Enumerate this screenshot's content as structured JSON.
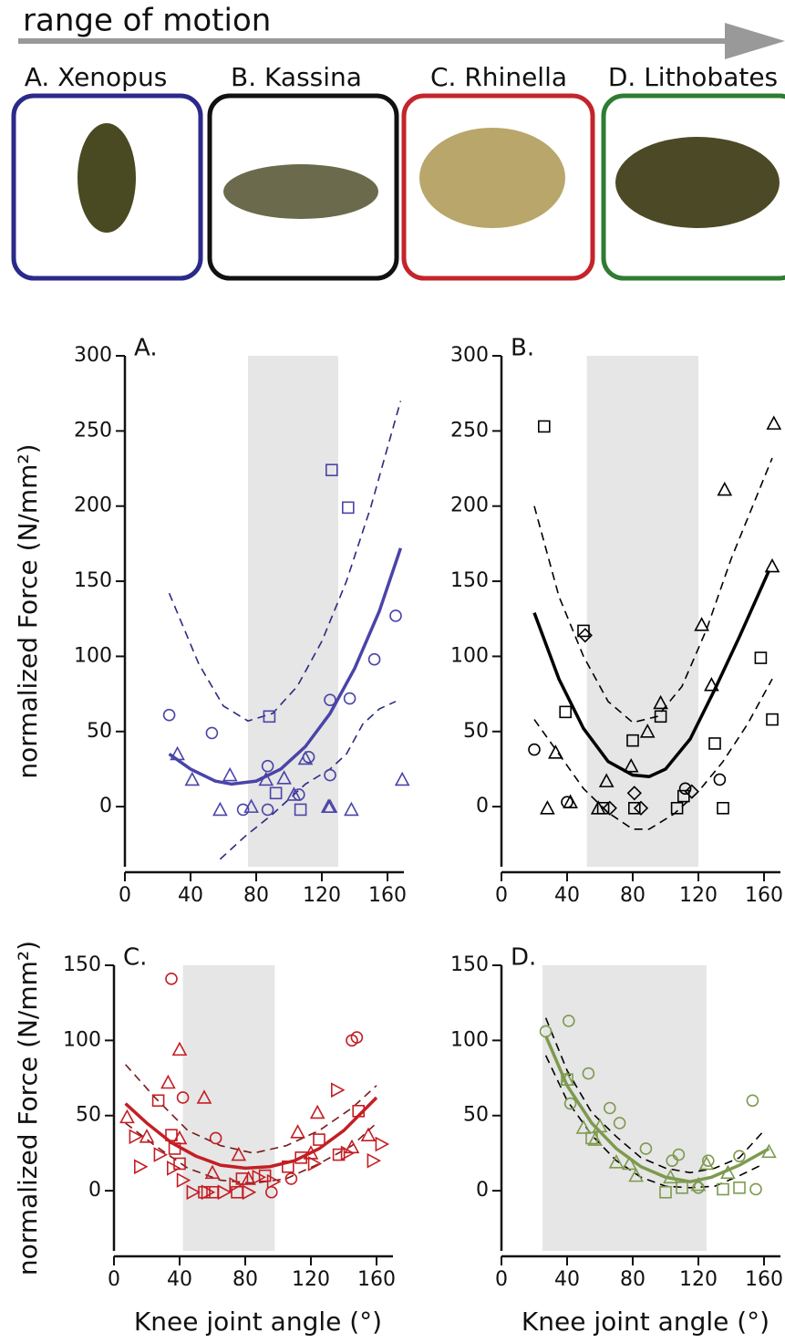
{
  "header": {
    "title": "range of motion",
    "species": [
      "A. Xenopus",
      "B. Kassina",
      "C. Rhinella",
      "D. Lithobates"
    ]
  },
  "chart_data": [
    {
      "type": "scatter",
      "panel_label": "A.",
      "ylabel": "normalized Force (N/mm²)",
      "xlim": [
        0,
        170
      ],
      "xticks": [
        0,
        40,
        80,
        120,
        160
      ],
      "ylim": [
        -40,
        300
      ],
      "yticks": [
        0,
        50,
        100,
        150,
        200,
        250,
        300
      ],
      "shade": [
        75,
        130
      ],
      "color": "#4a44a8",
      "ci_color": "#2b2a80",
      "series": [
        {
          "marker": "circle",
          "x": [
            27,
            53,
            72,
            87,
            87,
            106,
            112,
            125,
            125,
            137,
            152,
            165
          ],
          "values": [
            61,
            49,
            -2,
            27,
            -2,
            8,
            33,
            71,
            21,
            72,
            98,
            127
          ]
        },
        {
          "marker": "triangle",
          "x": [
            32,
            41,
            58,
            64,
            77,
            86,
            97,
            103,
            110,
            124,
            125,
            138,
            169
          ],
          "values": [
            35,
            18,
            -2,
            21,
            0,
            18,
            19,
            8,
            32,
            0,
            0,
            -2,
            18
          ]
        },
        {
          "marker": "square",
          "x": [
            88,
            92,
            107,
            126,
            136
          ],
          "values": [
            60,
            9,
            -2,
            224,
            199
          ]
        }
      ],
      "fit": {
        "x": [
          27,
          40,
          55,
          65,
          80,
          95,
          110,
          125,
          140,
          155,
          168
        ],
        "values": [
          35,
          25,
          17,
          15,
          17,
          25,
          40,
          62,
          92,
          130,
          172
        ]
      },
      "ci_upper": {
        "x": [
          27,
          45,
          60,
          75,
          90,
          105,
          120,
          135,
          150,
          168
        ],
        "values": [
          142,
          95,
          67,
          57,
          62,
          80,
          110,
          150,
          200,
          270
        ]
      },
      "ci_lower": {
        "x": [
          58,
          73,
          90,
          100,
          110,
          125,
          135,
          145,
          155,
          165
        ],
        "values": [
          -35,
          -20,
          -5,
          5,
          15,
          25,
          35,
          55,
          65,
          70
        ]
      }
    },
    {
      "type": "scatter",
      "panel_label": "B.",
      "xlim": [
        0,
        170
      ],
      "xticks": [
        0,
        40,
        80,
        120,
        160
      ],
      "ylim": [
        -40,
        300
      ],
      "yticks": [
        0,
        50,
        100,
        150,
        200,
        250,
        300
      ],
      "shade": [
        52,
        120
      ],
      "color": "#000000",
      "ci_color": "#000000",
      "series": [
        {
          "marker": "circle",
          "x": [
            20,
            40,
            112,
            133
          ],
          "values": [
            38,
            3,
            12,
            18
          ]
        },
        {
          "marker": "square",
          "x": [
            26,
            39,
            50,
            62,
            80,
            81,
            97,
            107,
            111,
            130,
            135,
            158,
            165
          ],
          "values": [
            253,
            63,
            117,
            -1,
            44,
            -1,
            60,
            -1,
            7,
            42,
            -1,
            99,
            58
          ]
        },
        {
          "marker": "triangle",
          "x": [
            28,
            33,
            42,
            59,
            64,
            79,
            89,
            97,
            122,
            128,
            136,
            165,
            166
          ],
          "values": [
            -1,
            36,
            3,
            -1,
            17,
            27,
            50,
            69,
            121,
            81,
            211,
            160,
            255
          ]
        },
        {
          "marker": "diamond",
          "x": [
            51,
            66,
            81,
            85,
            116
          ],
          "values": [
            114,
            -1,
            9,
            -1,
            10
          ]
        }
      ],
      "fit": {
        "x": [
          20,
          35,
          50,
          65,
          80,
          90,
          100,
          115,
          130,
          145,
          163
        ],
        "values": [
          129,
          85,
          52,
          30,
          21,
          20,
          25,
          45,
          78,
          113,
          157
        ]
      },
      "ci_upper": {
        "x": [
          20,
          35,
          50,
          65,
          80,
          95,
          110,
          125,
          140,
          165
        ],
        "values": [
          200,
          140,
          100,
          70,
          56,
          60,
          80,
          118,
          165,
          232
        ]
      },
      "ci_lower": {
        "x": [
          20,
          35,
          50,
          65,
          80,
          90,
          105,
          120,
          135,
          150,
          165
        ],
        "values": [
          58,
          35,
          12,
          -4,
          -15,
          -15,
          -5,
          10,
          30,
          55,
          85
        ]
      }
    },
    {
      "type": "scatter",
      "panel_label": "C.",
      "ylabel": "normalized Force (N/mm²)",
      "xlabel": "Knee joint angle (°)",
      "xlim": [
        0,
        170
      ],
      "xticks": [
        0,
        40,
        80,
        120,
        160
      ],
      "ylim": [
        -40,
        150
      ],
      "yticks": [
        0,
        50,
        100,
        150
      ],
      "shade": [
        42,
        98
      ],
      "color": "#c41e24",
      "ci_color": "#7a1a1a",
      "series": [
        {
          "marker": "circle",
          "x": [
            35,
            42,
            62,
            96,
            108,
            145,
            148
          ],
          "values": [
            141,
            62,
            35,
            -1,
            8,
            100,
            102
          ]
        },
        {
          "marker": "triangle",
          "x": [
            8,
            20,
            33,
            40,
            40,
            55,
            60,
            76,
            82,
            112,
            120,
            124,
            145,
            155
          ],
          "values": [
            49,
            36,
            72,
            94,
            35,
            62,
            12,
            24,
            8,
            39,
            25,
            52,
            29,
            37
          ]
        },
        {
          "marker": "square",
          "x": [
            27,
            35,
            37,
            40,
            55,
            60,
            75,
            78,
            92,
            106,
            114,
            125,
            137,
            149
          ],
          "values": [
            60,
            37,
            28,
            18,
            -1,
            -1,
            -1,
            8,
            10,
            16,
            22,
            34,
            24,
            53
          ]
        },
        {
          "marker": "right-triangle",
          "x": [
            13,
            16,
            28,
            36,
            42,
            48,
            57,
            67,
            74,
            82,
            88,
            97,
            122,
            136,
            142,
            158,
            163
          ],
          "values": [
            36,
            16,
            24,
            15,
            7,
            -1,
            -1,
            -1,
            4,
            -1,
            9,
            6,
            18,
            67,
            25,
            20,
            31
          ]
        }
      ],
      "fit": {
        "x": [
          7,
          20,
          35,
          50,
          65,
          80,
          95,
          110,
          125,
          140,
          160
        ],
        "values": [
          58,
          45,
          32,
          23,
          17,
          15,
          16,
          20,
          28,
          40,
          62
        ]
      },
      "ci_upper": {
        "x": [
          7,
          25,
          45,
          65,
          85,
          105,
          125,
          145,
          160
        ],
        "values": [
          84,
          62,
          40,
          30,
          25,
          30,
          40,
          55,
          70
        ]
      },
      "ci_lower": {
        "x": [
          7,
          25,
          45,
          65,
          85,
          105,
          125,
          145,
          160
        ],
        "values": [
          45,
          30,
          15,
          7,
          5,
          8,
          18,
          30,
          45
        ]
      }
    },
    {
      "type": "scatter",
      "panel_label": "D.",
      "xlabel": "Knee joint angle (°)",
      "xlim": [
        0,
        170
      ],
      "xticks": [
        0,
        40,
        80,
        120,
        160
      ],
      "ylim": [
        -40,
        150
      ],
      "yticks": [
        0,
        50,
        100,
        150
      ],
      "shade": [
        25,
        125
      ],
      "color": "#7d9a4e",
      "ci_color": "#000000",
      "series": [
        {
          "marker": "circle",
          "x": [
            27,
            41,
            42,
            53,
            66,
            72,
            88,
            104,
            108,
            120,
            126,
            153,
            155,
            145
          ],
          "values": [
            106,
            113,
            58,
            78,
            55,
            45,
            28,
            20,
            24,
            2,
            20,
            60,
            1,
            23
          ]
        },
        {
          "marker": "triangle",
          "x": [
            40,
            50,
            57,
            60,
            70,
            78,
            82,
            103,
            120,
            125,
            138,
            163
          ],
          "values": [
            74,
            42,
            34,
            43,
            19,
            18,
            10,
            9,
            4,
            18,
            12,
            26
          ]
        },
        {
          "marker": "square",
          "x": [
            40,
            55,
            100,
            110,
            135,
            145
          ],
          "values": [
            74,
            35,
            -1,
            2,
            1,
            2
          ]
        }
      ],
      "fit": {
        "x": [
          27,
          40,
          55,
          70,
          85,
          100,
          115,
          128,
          145,
          163
        ],
        "values": [
          103,
          70,
          45,
          28,
          16,
          9,
          6,
          9,
          17,
          28
        ]
      },
      "ci_upper": {
        "x": [
          27,
          40,
          55,
          70,
          85,
          100,
          115,
          130,
          145,
          160
        ],
        "values": [
          115,
          80,
          52,
          36,
          22,
          15,
          12,
          15,
          22,
          40
        ]
      },
      "ci_lower": {
        "x": [
          27,
          40,
          55,
          70,
          85,
          100,
          115,
          130,
          145,
          160
        ],
        "values": [
          90,
          60,
          37,
          20,
          9,
          3,
          2,
          3,
          10,
          18
        ]
      }
    }
  ]
}
